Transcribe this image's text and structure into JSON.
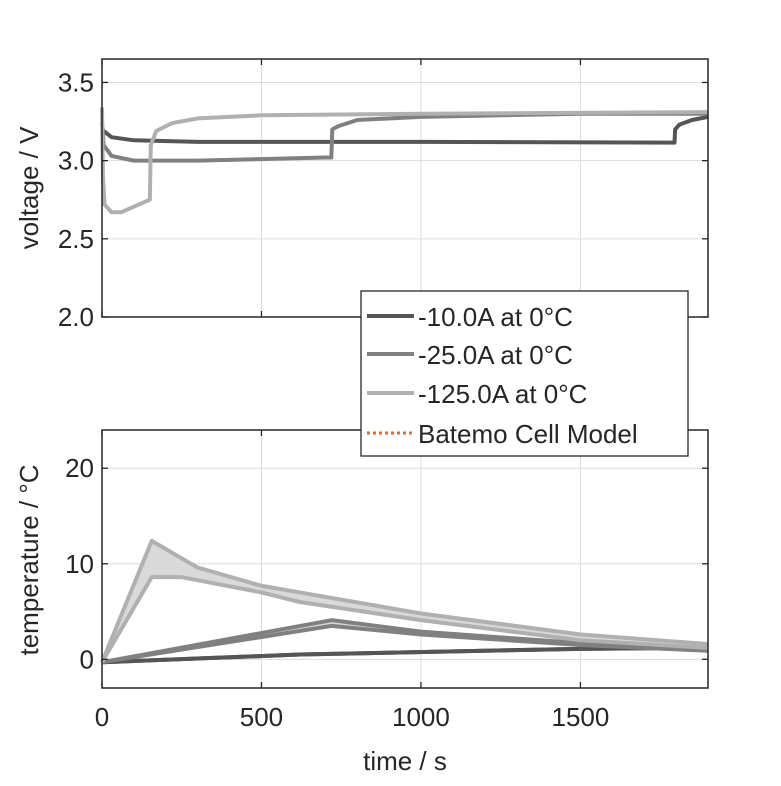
{
  "chart_data": [
    {
      "type": "line",
      "ylabel": "voltage / V",
      "xlim": [
        0,
        1900
      ],
      "ylim": [
        2.0,
        3.65
      ],
      "yticks": [
        "2.0",
        "2.5",
        "3.0",
        "3.5"
      ],
      "ytick_values": [
        2.0,
        2.5,
        3.0,
        3.5
      ],
      "xtick_values": [
        0,
        500,
        1000,
        1500
      ],
      "grid": true,
      "series": [
        {
          "name": "-10.0A at 0°C",
          "color": "#555555",
          "x": [
            0,
            5,
            30,
            100,
            300,
            1000,
            1795,
            1797,
            1810,
            1850,
            1900
          ],
          "y": [
            3.2,
            3.19,
            3.15,
            3.13,
            3.12,
            3.12,
            3.115,
            3.2,
            3.23,
            3.26,
            3.28
          ]
        },
        {
          "name": "-25.0A at 0°C",
          "color": "#808080",
          "x": [
            0,
            5,
            30,
            100,
            300,
            700,
            719,
            722,
            740,
            800,
            1000,
            1500,
            1900
          ],
          "y": [
            3.25,
            3.1,
            3.03,
            3.0,
            3.0,
            3.02,
            3.02,
            3.2,
            3.22,
            3.26,
            3.28,
            3.3,
            3.3
          ]
        },
        {
          "name": "-125.0A at 0°C",
          "color": "#b0b0b0",
          "x": [
            0,
            3,
            8,
            30,
            60,
            150,
            153,
            170,
            220,
            300,
            500,
            1000,
            1900
          ],
          "y": [
            3.34,
            2.9,
            2.72,
            2.67,
            2.67,
            2.75,
            3.1,
            3.19,
            3.24,
            3.27,
            3.29,
            3.3,
            3.31
          ]
        }
      ]
    },
    {
      "type": "area",
      "ylabel": "temperature / °C",
      "xlabel": "time / s",
      "xlim": [
        0,
        1900
      ],
      "ylim": [
        -3,
        24
      ],
      "yticks": [
        "0",
        "10",
        "20"
      ],
      "ytick_values": [
        0,
        10,
        20
      ],
      "xticks": [
        "0",
        "500",
        "1000",
        "1500"
      ],
      "xtick_values": [
        0,
        500,
        1000,
        1500
      ],
      "grid": true,
      "series": [
        {
          "name": "-10.0A at 0°C",
          "color": "#555555",
          "upper": {
            "x": [
              0,
              620,
              1500,
              1900
            ],
            "y": [
              -0.3,
              0.5,
              1.1,
              1.2
            ]
          },
          "lower": {
            "x": [
              0,
              620,
              1500,
              1900
            ],
            "y": [
              -0.3,
              0.5,
              1.1,
              1.2
            ]
          }
        },
        {
          "name": "-25.0A at 0°C",
          "color": "#808080",
          "upper": {
            "x": [
              0,
              720,
              1000,
              1500,
              1900
            ],
            "y": [
              -0.3,
              4.1,
              2.9,
              1.7,
              1.1
            ]
          },
          "lower": {
            "x": [
              0,
              720,
              1000,
              1500,
              1900
            ],
            "y": [
              -0.3,
              3.5,
              2.6,
              1.5,
              0.9
            ]
          }
        },
        {
          "name": "-125.0A at 0°C",
          "color": "#b0b0b0",
          "upper": {
            "x": [
              0,
              156,
              300,
              500,
              620,
              1000,
              1500,
              1900
            ],
            "y": [
              -0.3,
              12.4,
              9.6,
              7.7,
              7.0,
              4.8,
              2.6,
              1.6
            ]
          },
          "lower": {
            "x": [
              0,
              156,
              250,
              500,
              620,
              1000,
              1500,
              1900
            ],
            "y": [
              -0.3,
              8.6,
              8.6,
              7.0,
              6.0,
              4.1,
              2.0,
              1.2
            ]
          }
        }
      ]
    }
  ],
  "legend": {
    "placement": "center-right",
    "entries": [
      {
        "label": "-10.0A at 0°C",
        "color": "#555555",
        "style": "solid"
      },
      {
        "label": "-25.0A at 0°C",
        "color": "#808080",
        "style": "solid"
      },
      {
        "label": "-125.0A at 0°C",
        "color": "#b0b0b0",
        "style": "solid"
      },
      {
        "label": "Batemo Cell Model",
        "color": "#f26522",
        "style": "dotted"
      }
    ]
  },
  "band_color": "#d9d9d9"
}
